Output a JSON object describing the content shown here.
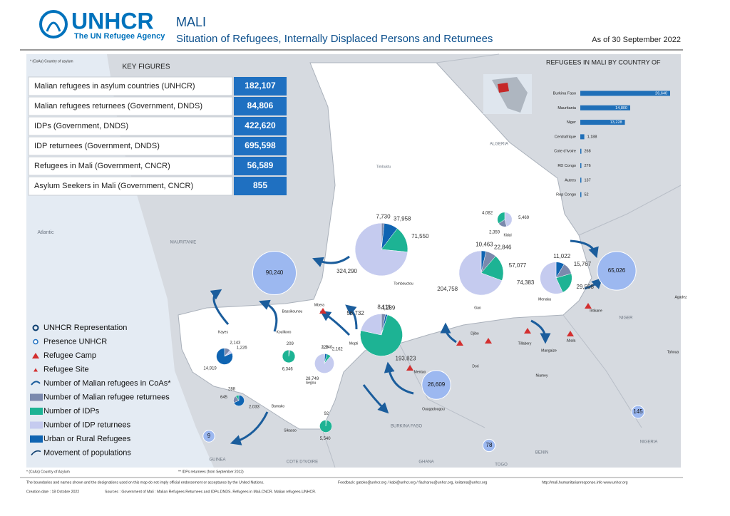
{
  "header": {
    "logo": "UNHCR",
    "logo_sub": "The UN Refugee Agency",
    "title": "MALI",
    "subtitle": "Situation of Refugees, Internally Displaced Persons and Returnees",
    "date": "As of 30 September 2022"
  },
  "key_figures": {
    "note": "* (CoAs) Country of asylum",
    "title": "KEY FIGURES",
    "rows": [
      [
        "Malian refugees in asylum countries (UNHCR)",
        "182,107"
      ],
      [
        "Malian refugees returnees (Government, DNDS)",
        "84,806"
      ],
      [
        "IDPs (Government, DNDS)",
        "422,620"
      ],
      [
        "IDP returnees (Government, DNDS)",
        "695,598"
      ],
      [
        "Refugees in Mali (Government, CNCR)",
        "56,589"
      ],
      [
        "Asylum Seekers in Mali (Government, CNCR)",
        "855"
      ]
    ]
  },
  "chart_data": {
    "type": "bar",
    "title": "REFUGEES IN MALI BY COUNTRY OF",
    "color": "#1f6fb8",
    "categories": [
      "Burkina Faso",
      "Mauritania",
      "Niger",
      "Centrafrique",
      "Cote d'Ivoire",
      "RD Congo",
      "Autres",
      "Rep Congo"
    ],
    "values": [
      26640,
      14800,
      13228,
      1188,
      268,
      276,
      137,
      52
    ],
    "value_labels": [
      "26,640",
      "14,800",
      "13,228",
      "1,188",
      "268",
      "276",
      "137",
      "52"
    ]
  },
  "legend": [
    "UNHCR Representation",
    "Presence UNHCR",
    "Refugee Camp",
    "Refugee Site",
    "Number of Malian refugees in CoAs*",
    "Number of Malian refugee returnees",
    "Number of IDPs",
    "Number of IDP returnees",
    "Urban or Rural Refugees",
    "Movement of populations"
  ],
  "map": {
    "labels": [
      "Atlantic",
      "MAURITANIE",
      "ALGERIA",
      "Timbuktu",
      "NIGER",
      "BURKINA FASO",
      "GUINEA",
      "COTE D'IVOIRE",
      "GHANA",
      "TOGO",
      "BENIN",
      "NIGERIA",
      "Tombouctou",
      "Gao",
      "Kidal",
      "Menaka",
      "Mopti",
      "Segou",
      "Kayes",
      "Koulikoro",
      "Bamako",
      "Sikasso",
      "Bassikounou",
      "Mbera",
      "Agadez",
      "Tahoua",
      "Niamey",
      "Tillabery",
      "Abala",
      "Mangaize",
      "Intikane",
      "Ouagadougou",
      "Djibo",
      "Dori",
      "Mentao"
    ],
    "circles": [
      {
        "value": 90240,
        "label": "90,240"
      },
      {
        "value": 65026,
        "label": "65,026"
      },
      {
        "value": 26609,
        "label": "26,609"
      },
      {
        "value": 145,
        "label": "145"
      },
      {
        "value": 9,
        "label": "9"
      },
      {
        "value": 78,
        "label": "78"
      }
    ],
    "pies": [
      {
        "values": [
          7730,
          37958,
          71550,
          324290
        ],
        "value_labels": [
          "7,730",
          "37,958",
          "71,550",
          "324,290"
        ],
        "colors": [
          "#7b89ad",
          "#0f64b2",
          "#1db394",
          "#c5cbef"
        ]
      },
      {
        "values": [
          5469,
          2359,
          4082
        ],
        "value_labels": [
          "5,469",
          "2,359",
          "4,082"
        ],
        "colors": [
          "#c5cbef",
          "#7b89ad",
          "#1db394"
        ]
      },
      {
        "values": [
          10463,
          22846,
          57077,
          204758
        ],
        "value_labels": [
          "10,463",
          "22,846",
          "57,077",
          "204,758"
        ],
        "colors": [
          "#0f64b2",
          "#7b89ad",
          "#1db394",
          "#c5cbef"
        ]
      },
      {
        "values": [
          11022,
          15767,
          29508,
          74383
        ],
        "value_labels": [
          "11,022",
          "15,767",
          "29,508",
          "74,383"
        ],
        "colors": [
          "#0f64b2",
          "#7b89ad",
          "#1db394",
          "#c5cbef"
        ]
      },
      {
        "values": [
          8111,
          4289,
          193823,
          56732
        ],
        "value_labels": [
          "8,111",
          "4,289",
          "193,823",
          "56,732"
        ],
        "colors": [
          "#7b89ad",
          "#0f64b2",
          "#1db394",
          "#c5cbef"
        ]
      },
      {
        "values": [
          228,
          1240,
          2162,
          28749
        ],
        "value_labels": [
          "228",
          "1,240",
          "2,162",
          "28,749"
        ],
        "colors": [
          "#7b89ad",
          "#0f64b2",
          "#1db394",
          "#c5cbef"
        ]
      },
      {
        "values": [
          2143,
          1226,
          14919
        ],
        "value_labels": [
          "2,143",
          "1,226",
          "14,919"
        ],
        "colors": [
          "#7b89ad",
          "#c5cbef",
          "#0f64b2"
        ]
      },
      {
        "values": [
          209,
          6346
        ],
        "value_labels": [
          "209",
          "6,346"
        ],
        "colors": [
          "#7b89ad",
          "#1db394"
        ]
      },
      {
        "values": [
          2033,
          645,
          288
        ],
        "value_labels": [
          "2,033",
          "645",
          "288"
        ],
        "colors": [
          "#0f64b2",
          "#7b89ad",
          "#1db394"
        ]
      },
      {
        "values": [
          92,
          5540
        ],
        "value_labels": [
          "92",
          "5,540"
        ],
        "colors": [
          "#7b89ad",
          "#1db394"
        ]
      }
    ]
  },
  "footer": {
    "note1": "* (CoAs) Country of Asylum",
    "note2": "** IDPs returnees (from September 2012)",
    "disclaimer": "The boundaries and names shown and the designations used on this map do not imply official endorsement or acceptance by the United Nations.",
    "feedback": "Feedback: gatoko@unhcr.org / kabi@unhcr.org / fiacharou@unhcr.org, keitama@unhcr.org",
    "links": "http://mali.humanitarianresponse.info   www.unhcr.org",
    "created": "Creation date : 18 Octobre 2022",
    "sources": "Sources : Government of Mali : Malian Refugees Returnees and IDPs-DNDS. Refugees in Mali-CNCR. Malian refugees-UNHCR."
  }
}
